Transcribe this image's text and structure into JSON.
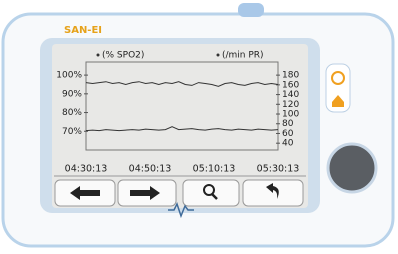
{
  "brand": "SAN-EI",
  "chart_data": {
    "type": "line",
    "series": [
      {
        "name": "(% SPO2)",
        "color": "#333333",
        "values": [
          96,
          95.5,
          96,
          96.5,
          95.5,
          96,
          95,
          96,
          96.5,
          95.5,
          96,
          95,
          96,
          95.5,
          96.5,
          95,
          94.5,
          96,
          95.5,
          95,
          94,
          95.5,
          96,
          95,
          94.5,
          95.5,
          96,
          95,
          95.5,
          95
        ]
      },
      {
        "name": "(/min PR)",
        "color": "#333333",
        "axis": "y2",
        "values": [
          66,
          67,
          66,
          68,
          67,
          66,
          67,
          68,
          67,
          69,
          68,
          67,
          68,
          74,
          68,
          69,
          70,
          68,
          67,
          69,
          70,
          68,
          67,
          69,
          68,
          67,
          69,
          68,
          67,
          68
        ]
      }
    ],
    "ylim": [
      60,
      107
    ],
    "yticks": [
      {
        "value": 100,
        "label": "100%"
      },
      {
        "value": 90,
        "label": "90%"
      },
      {
        "value": 80,
        "label": "80%"
      },
      {
        "value": 70,
        "label": "70%"
      }
    ],
    "y2lim": [
      26,
      207
    ],
    "y2ticks": [
      180,
      160,
      140,
      120,
      100,
      80,
      60,
      40
    ],
    "x_labels": [
      "04:30:13",
      "04:50:13",
      "05:10:13",
      "05:30:13"
    ]
  }
}
